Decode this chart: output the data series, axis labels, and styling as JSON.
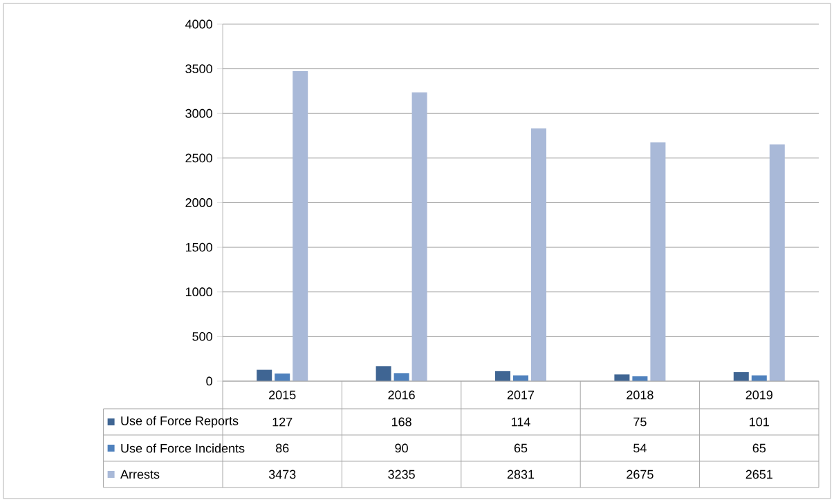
{
  "chart_data": {
    "type": "bar",
    "categories": [
      "2015",
      "2016",
      "2017",
      "2018",
      "2019"
    ],
    "series": [
      {
        "name": "Use of Force Reports",
        "color": "#3F6593",
        "values": [
          127,
          168,
          114,
          75,
          101
        ]
      },
      {
        "name": "Use of Force Incidents",
        "color": "#4F81BD",
        "values": [
          86,
          90,
          65,
          54,
          65
        ]
      },
      {
        "name": "Arrests",
        "color": "#A9B9D8",
        "values": [
          3473,
          3235,
          2831,
          2675,
          2651
        ]
      }
    ],
    "ylim": [
      0,
      4000
    ],
    "yticks": [
      0,
      500,
      1000,
      1500,
      2000,
      2500,
      3000,
      3500,
      4000
    ],
    "grid": "y",
    "legend": "bottom",
    "data_labels": true
  }
}
